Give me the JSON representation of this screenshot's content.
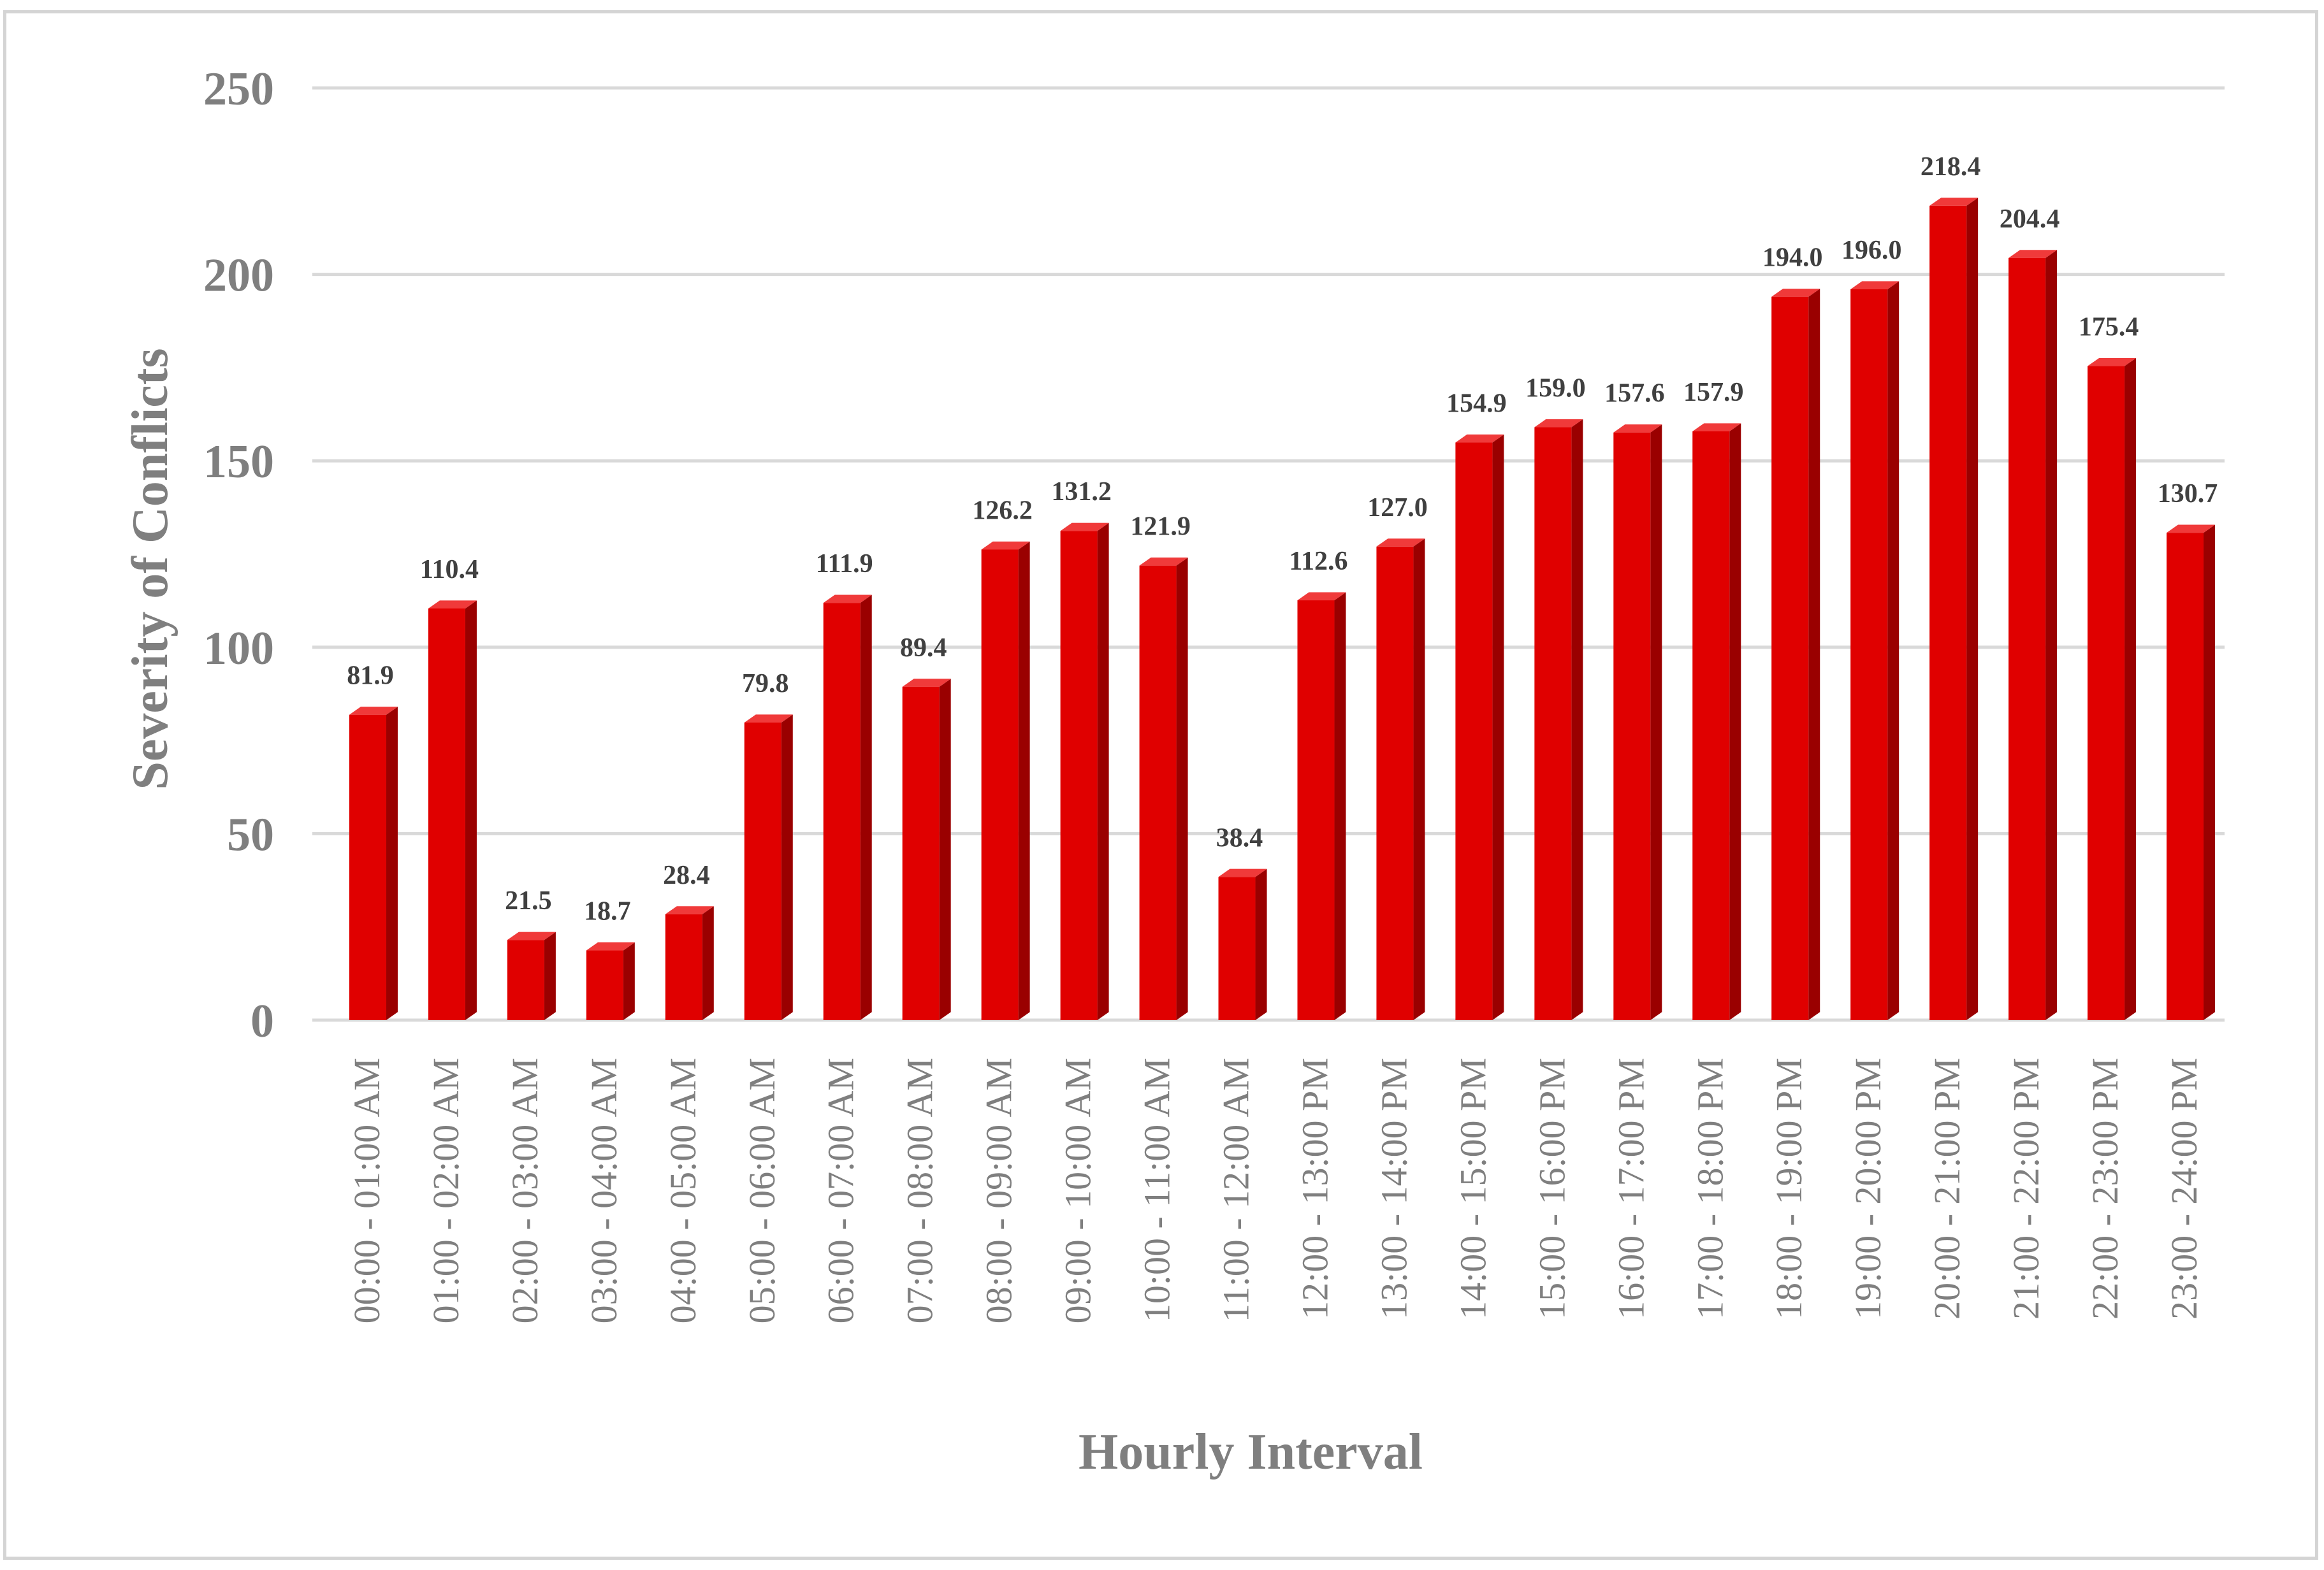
{
  "chart_data": {
    "type": "bar",
    "title": "",
    "xlabel": "Hourly Interval",
    "ylabel": "Severity of Conflicts",
    "ylim": [
      0,
      250
    ],
    "yticks": [
      0,
      50,
      100,
      150,
      200,
      250
    ],
    "grid": true,
    "legend": "none",
    "bar_color": "#e00000",
    "bar_side_color": "#9a0000",
    "bar_top_color": "#f03a3a",
    "categories": [
      "00:00 - 01:00 AM",
      "01:00 - 02:00 AM",
      "02:00 - 03:00 AM",
      "03:00 - 04:00 AM",
      "04:00 - 05:00 AM",
      "05:00 - 06:00 AM",
      "06:00 - 07:00 AM",
      "07:00 - 08:00 AM",
      "08:00 - 09:00 AM",
      "09:00 - 10:00 AM",
      "10:00 - 11:00 AM",
      "11:00 - 12:00 AM",
      "12:00 - 13:00 PM",
      "13:00 - 14:00 PM",
      "14:00 - 15:00 PM",
      "15:00 - 16:00 PM",
      "16:00 - 17:00 PM",
      "17:00 - 18:00 PM",
      "18:00 - 19:00 PM",
      "19:00 - 20:00 PM",
      "20:00 - 21:00 PM",
      "21:00 - 22:00 PM",
      "22:00 - 23:00 PM",
      "23:00 - 24:00 PM"
    ],
    "values": [
      81.9,
      110.4,
      21.5,
      18.7,
      28.4,
      79.8,
      111.9,
      89.4,
      126.2,
      131.2,
      121.9,
      38.4,
      112.6,
      127.0,
      154.9,
      159.0,
      157.6,
      157.9,
      194.0,
      196.0,
      218.4,
      204.4,
      175.4,
      130.7
    ],
    "data_labels": [
      "81.9",
      "110.4",
      "21.5",
      "18.7",
      "28.4",
      "79.8",
      "111.9",
      "89.4",
      "126.2",
      "131.2",
      "121.9",
      "38.4",
      "112.6",
      "127.0",
      "154.9",
      "159.0",
      "157.6",
      "157.9",
      "194.0",
      "196.0",
      "218.4",
      "204.4",
      "175.4",
      "130.7"
    ]
  }
}
